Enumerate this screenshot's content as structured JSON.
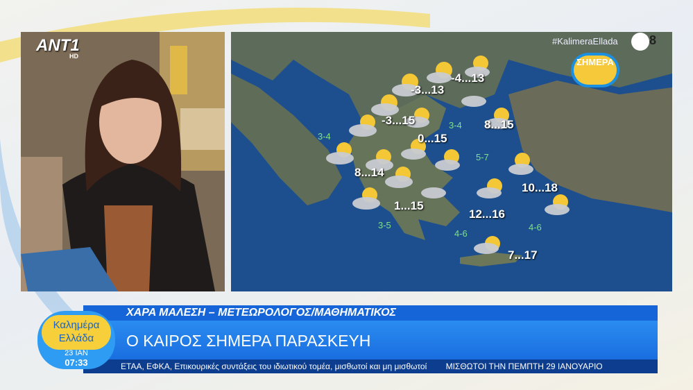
{
  "channel": {
    "logo": "ANT1",
    "quality": "HD"
  },
  "map": {
    "hashtag": "#KalimeraEllada",
    "channel_number": "8",
    "badge": "ΣΗΜΕΡΑ",
    "temperatures": [
      "-3...13",
      "-4...13",
      "-3...15",
      "0...15",
      "8...15",
      "8...14",
      "10...18",
      "1...15",
      "12...16",
      "7...17"
    ],
    "winds": [
      "3-4",
      "3-4",
      "5-7",
      "3-5",
      "4-6",
      "4-6"
    ]
  },
  "lower_third": {
    "name": "ΧΑΡΑ ΜΑΛΕΣΗ – ΜΕΤΕΩΡΟΛΟΓΟΣ/ΜΑΘΗΜΑΤΙΚΟΣ",
    "headline": "Ο ΚΑΙΡΟΣ ΣΗΜΕΡΑ ΠΑΡΑΣΚΕΥΗ",
    "ticker": [
      "ΕΤΑΑ, ΕΦΚΑ, Επικουρικές συντάξεις του ιδιωτικού τομέα, μισθωτοί και μη μισθωτοί",
      "ΜΙΣΘΩΤΟΙ ΤΗΝ ΠΕΜΠΤΗ 29 ΙΑΝΟΥΑΡΙΟ"
    ]
  },
  "show": {
    "name_line1": "Καλημέρα",
    "name_line2": "Ελλάδα",
    "date": "23 ΙΑΝ",
    "time": "07:33"
  }
}
